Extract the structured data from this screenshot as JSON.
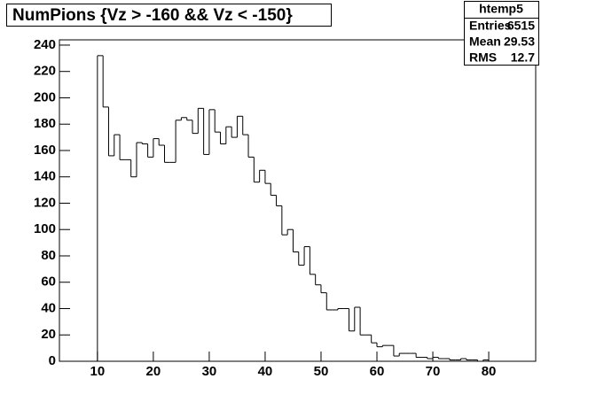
{
  "chart_data": {
    "type": "histogram",
    "title": "NumPions  {Vz > -160 && Vz < -150}",
    "bins": [
      10,
      11,
      12,
      13,
      14,
      15,
      16,
      17,
      18,
      19,
      20,
      21,
      22,
      23,
      24,
      25,
      26,
      27,
      28,
      29,
      30,
      31,
      32,
      33,
      34,
      35,
      36,
      37,
      38,
      39,
      40,
      41,
      42,
      43,
      44,
      45,
      46,
      47,
      48,
      49,
      50,
      51,
      52,
      53,
      54,
      55,
      56,
      57,
      58,
      59,
      60,
      61,
      62,
      63,
      64,
      65,
      66,
      67,
      68,
      69,
      70,
      71,
      72,
      73,
      74,
      75,
      76,
      77,
      78,
      79,
      80,
      81
    ],
    "values": [
      232,
      193,
      156,
      172,
      153,
      153,
      140,
      166,
      165,
      155,
      169,
      164,
      151,
      151,
      183,
      185,
      183,
      173,
      192,
      157,
      191,
      174,
      165,
      178,
      170,
      186,
      172,
      155,
      136,
      145,
      135,
      126,
      118,
      96,
      100,
      83,
      73,
      87,
      66,
      58,
      52,
      39,
      39,
      40,
      40,
      23,
      41,
      20,
      20,
      14,
      11,
      12,
      12,
      4,
      6,
      6,
      6,
      3,
      3,
      2,
      3,
      2,
      2,
      1,
      1,
      2,
      1,
      1,
      0,
      1,
      0
    ],
    "color": "#000000",
    "xlim": [
      3.2,
      88.4
    ],
    "ylim": [
      0,
      244
    ],
    "xticks": [
      10,
      20,
      30,
      40,
      50,
      60,
      70,
      80
    ],
    "yticks": [
      0,
      20,
      40,
      60,
      80,
      100,
      120,
      140,
      160,
      180,
      200,
      220,
      240
    ],
    "stats": {
      "name": "htemp5",
      "rows": [
        {
          "label": "Entries",
          "value": 6515
        },
        {
          "label": "Mean",
          "value": 29.53
        },
        {
          "label": "RMS",
          "value": 12.7
        }
      ]
    }
  }
}
